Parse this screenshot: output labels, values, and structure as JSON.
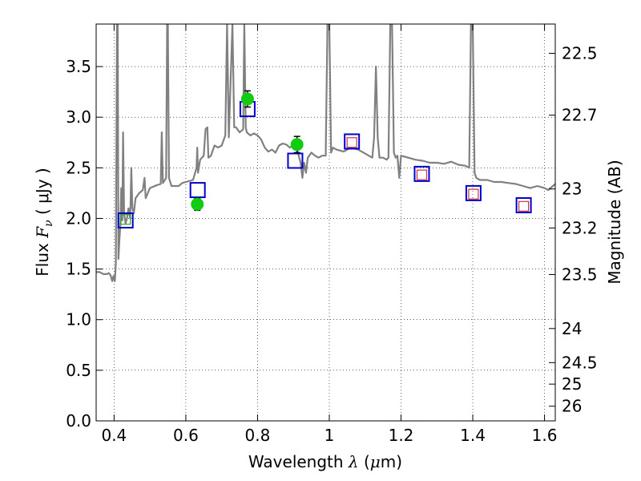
{
  "chart_data": {
    "type": "scatter",
    "title": "",
    "xlabel": {
      "prefix": "Wavelength  ",
      "symbol": "λ",
      "open": " (",
      "unit_mu": "μ",
      "unit": "m)"
    },
    "ylabel": {
      "prefix": "Flux  ",
      "symbol": "F",
      "subscript": "ν",
      "unit": "  ( μJy )"
    },
    "y2label": "Magnitude (AB)",
    "xlim": [
      0.35,
      1.63
    ],
    "ylim": [
      0.0,
      3.92
    ],
    "grid": true,
    "x_ticks": [
      {
        "value": 0.4,
        "label": "0.4"
      },
      {
        "value": 0.6,
        "label": "0.6"
      },
      {
        "value": 0.8,
        "label": "0.8"
      },
      {
        "value": 1.0,
        "label": "1"
      },
      {
        "value": 1.2,
        "label": "1.2"
      },
      {
        "value": 1.4,
        "label": "1.4"
      },
      {
        "value": 1.6,
        "label": "1.6"
      }
    ],
    "y_ticks": [
      {
        "value": 0.0,
        "label": "0.0"
      },
      {
        "value": 0.5,
        "label": "0.5"
      },
      {
        "value": 1.0,
        "label": "1.0"
      },
      {
        "value": 1.5,
        "label": "1.5"
      },
      {
        "value": 2.0,
        "label": "2.0"
      },
      {
        "value": 2.5,
        "label": "2.5"
      },
      {
        "value": 3.0,
        "label": "3.0"
      },
      {
        "value": 3.5,
        "label": "3.5"
      }
    ],
    "y2_ticks": [
      {
        "mag": 22.5,
        "label": "22.5"
      },
      {
        "mag": 22.7,
        "label": "22.7"
      },
      {
        "mag": 23.0,
        "label": "23"
      },
      {
        "mag": 23.2,
        "label": "23.2"
      },
      {
        "mag": 23.5,
        "label": "23.5"
      },
      {
        "mag": 24.0,
        "label": "24"
      },
      {
        "mag": 24.5,
        "label": "24.5"
      },
      {
        "mag": 25.0,
        "label": "25"
      },
      {
        "mag": 26.0,
        "label": "26"
      }
    ],
    "series": [
      {
        "kind": "spectrum",
        "color": "#808080",
        "points": [
          [
            0.35,
            1.47
          ],
          [
            0.36,
            1.47
          ],
          [
            0.37,
            1.45
          ],
          [
            0.38,
            1.45
          ],
          [
            0.385,
            1.46
          ],
          [
            0.39,
            1.44
          ],
          [
            0.395,
            1.38
          ],
          [
            0.398,
            1.43
          ],
          [
            0.402,
            1.38
          ],
          [
            0.405,
            1.55
          ],
          [
            0.408,
            3.92
          ],
          [
            0.41,
            3.92
          ],
          [
            0.412,
            1.6
          ],
          [
            0.415,
            1.8
          ],
          [
            0.418,
            1.95
          ],
          [
            0.42,
            2.3
          ],
          [
            0.423,
            1.98
          ],
          [
            0.425,
            2.85
          ],
          [
            0.428,
            2.05
          ],
          [
            0.432,
            1.95
          ],
          [
            0.436,
            2.0
          ],
          [
            0.44,
            2.1
          ],
          [
            0.445,
            2.0
          ],
          [
            0.448,
            2.5
          ],
          [
            0.451,
            2.1
          ],
          [
            0.455,
            2.05
          ],
          [
            0.46,
            2.2
          ],
          [
            0.47,
            2.25
          ],
          [
            0.48,
            2.28
          ],
          [
            0.485,
            2.4
          ],
          [
            0.488,
            2.2
          ],
          [
            0.5,
            2.3
          ],
          [
            0.52,
            2.33
          ],
          [
            0.53,
            2.34
          ],
          [
            0.533,
            2.85
          ],
          [
            0.536,
            2.35
          ],
          [
            0.545,
            2.4
          ],
          [
            0.548,
            3.92
          ],
          [
            0.55,
            3.92
          ],
          [
            0.553,
            2.4
          ],
          [
            0.56,
            2.32
          ],
          [
            0.58,
            2.32
          ],
          [
            0.59,
            2.35
          ],
          [
            0.6,
            2.36
          ],
          [
            0.62,
            2.38
          ],
          [
            0.63,
            2.5
          ],
          [
            0.632,
            2.7
          ],
          [
            0.634,
            2.45
          ],
          [
            0.64,
            2.58
          ],
          [
            0.65,
            2.62
          ],
          [
            0.655,
            2.88
          ],
          [
            0.66,
            2.9
          ],
          [
            0.663,
            2.6
          ],
          [
            0.67,
            2.62
          ],
          [
            0.68,
            2.72
          ],
          [
            0.69,
            2.7
          ],
          [
            0.7,
            2.72
          ],
          [
            0.71,
            2.82
          ],
          [
            0.715,
            3.92
          ],
          [
            0.72,
            2.8
          ],
          [
            0.73,
            3.92
          ],
          [
            0.735,
            2.9
          ],
          [
            0.74,
            2.9
          ],
          [
            0.75,
            2.85
          ],
          [
            0.76,
            2.88
          ],
          [
            0.763,
            3.92
          ],
          [
            0.767,
            2.9
          ],
          [
            0.77,
            2.85
          ],
          [
            0.78,
            2.82
          ],
          [
            0.79,
            2.84
          ],
          [
            0.8,
            2.82
          ],
          [
            0.81,
            2.78
          ],
          [
            0.82,
            2.7
          ],
          [
            0.83,
            2.66
          ],
          [
            0.84,
            2.68
          ],
          [
            0.85,
            2.65
          ],
          [
            0.86,
            2.72
          ],
          [
            0.87,
            2.74
          ],
          [
            0.88,
            2.73
          ],
          [
            0.89,
            2.7
          ],
          [
            0.9,
            2.72
          ],
          [
            0.91,
            2.68
          ],
          [
            0.92,
            2.55
          ],
          [
            0.925,
            2.4
          ],
          [
            0.93,
            2.55
          ],
          [
            0.935,
            2.45
          ],
          [
            0.94,
            2.6
          ],
          [
            0.95,
            2.65
          ],
          [
            0.96,
            2.62
          ],
          [
            0.97,
            2.6
          ],
          [
            0.98,
            2.62
          ],
          [
            0.99,
            2.62
          ],
          [
            0.995,
            3.92
          ],
          [
            1.0,
            3.92
          ],
          [
            1.005,
            2.65
          ],
          [
            1.01,
            2.7
          ],
          [
            1.02,
            2.68
          ],
          [
            1.04,
            2.66
          ],
          [
            1.06,
            2.7
          ],
          [
            1.08,
            2.68
          ],
          [
            1.09,
            2.66
          ],
          [
            1.1,
            2.64
          ],
          [
            1.11,
            2.62
          ],
          [
            1.12,
            2.6
          ],
          [
            1.125,
            2.8
          ],
          [
            1.13,
            3.5
          ],
          [
            1.135,
            2.8
          ],
          [
            1.14,
            2.6
          ],
          [
            1.15,
            2.6
          ],
          [
            1.16,
            2.58
          ],
          [
            1.165,
            2.6
          ],
          [
            1.17,
            3.92
          ],
          [
            1.175,
            3.92
          ],
          [
            1.18,
            2.65
          ],
          [
            1.185,
            2.6
          ],
          [
            1.19,
            2.62
          ],
          [
            1.195,
            2.4
          ],
          [
            1.2,
            2.62
          ],
          [
            1.22,
            2.6
          ],
          [
            1.24,
            2.58
          ],
          [
            1.26,
            2.57
          ],
          [
            1.28,
            2.55
          ],
          [
            1.3,
            2.55
          ],
          [
            1.32,
            2.54
          ],
          [
            1.34,
            2.56
          ],
          [
            1.36,
            2.53
          ],
          [
            1.38,
            2.52
          ],
          [
            1.39,
            2.5
          ],
          [
            1.395,
            3.92
          ],
          [
            1.4,
            3.92
          ],
          [
            1.405,
            2.45
          ],
          [
            1.41,
            2.4
          ],
          [
            1.42,
            2.38
          ],
          [
            1.44,
            2.38
          ],
          [
            1.46,
            2.36
          ],
          [
            1.48,
            2.36
          ],
          [
            1.5,
            2.35
          ],
          [
            1.52,
            2.34
          ],
          [
            1.54,
            2.32
          ],
          [
            1.56,
            2.3
          ],
          [
            1.58,
            2.32
          ],
          [
            1.6,
            2.3
          ],
          [
            1.61,
            2.28
          ],
          [
            1.63,
            2.34
          ]
        ]
      },
      {
        "kind": "squares",
        "color": "#0000cc",
        "points": [
          [
            0.432,
            1.98
          ],
          [
            0.633,
            2.28
          ],
          [
            0.772,
            3.08
          ],
          [
            0.905,
            2.57
          ],
          [
            1.063,
            2.76
          ],
          [
            1.258,
            2.44
          ],
          [
            1.402,
            2.25
          ],
          [
            1.542,
            2.13
          ]
        ]
      },
      {
        "kind": "small-squares",
        "color": "#cc3344",
        "points": [
          [
            1.063,
            2.75
          ],
          [
            1.258,
            2.43
          ],
          [
            1.402,
            2.24
          ],
          [
            1.542,
            2.12
          ]
        ]
      },
      {
        "kind": "small-squares",
        "color": "#22aa22",
        "points": [
          [
            0.432,
            1.99
          ]
        ]
      },
      {
        "kind": "circles",
        "color": "#11cc11",
        "points": [
          [
            0.632,
            2.14,
            0.06
          ],
          [
            0.772,
            3.18,
            0.08
          ],
          [
            0.91,
            2.73,
            0.08
          ]
        ]
      }
    ]
  }
}
